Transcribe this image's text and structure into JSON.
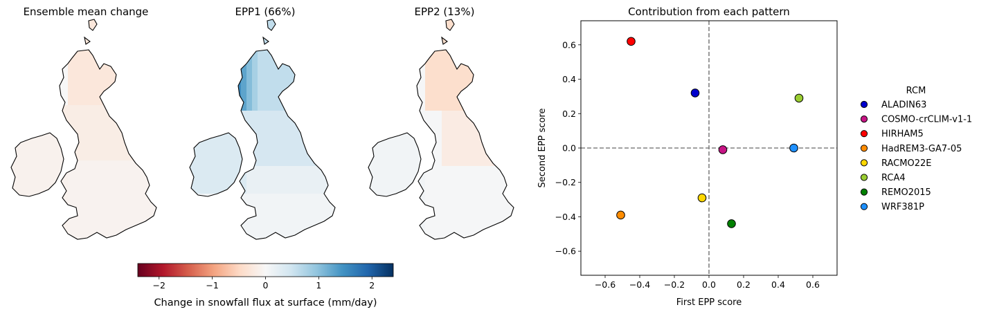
{
  "maps": [
    {
      "title": "Ensemble mean change",
      "pattern": "mean"
    },
    {
      "title": "EPP1 (66%)",
      "pattern": "epp1"
    },
    {
      "title": "EPP2 (13%)",
      "pattern": "epp2"
    }
  ],
  "colorbar": {
    "label": "Change in snowfall flux at surface (mm/day)",
    "range": [
      -2.4,
      2.4
    ],
    "ticks": [
      -2,
      -1,
      0,
      1,
      2
    ],
    "tick_labels": [
      "−2",
      "−1",
      "0",
      "1",
      "2"
    ],
    "colormap": "RdBu",
    "colors": [
      "#67001f",
      "#b2182b",
      "#d6604d",
      "#f4a582",
      "#fddbc7",
      "#f7f7f7",
      "#d1e5f0",
      "#92c5de",
      "#4393c3",
      "#2166ac",
      "#053061"
    ]
  },
  "chart_data": {
    "type": "scatter",
    "title": "Contribution from each pattern",
    "xlabel": "First EPP score",
    "ylabel": "Second EPP score",
    "xlim": [
      -0.74,
      0.74
    ],
    "ylim": [
      -0.74,
      0.74
    ],
    "xticks": [
      -0.6,
      -0.4,
      -0.2,
      0.0,
      0.2,
      0.4,
      0.6
    ],
    "xtick_labels": [
      "−0.6",
      "−0.4",
      "−0.2",
      "0.0",
      "0.2",
      "0.4",
      "0.6"
    ],
    "yticks": [
      -0.6,
      -0.4,
      -0.2,
      0.0,
      0.2,
      0.4,
      0.6
    ],
    "ytick_labels": [
      "−0.6",
      "−0.4",
      "−0.2",
      "0.0",
      "0.2",
      "0.4",
      "0.6"
    ],
    "reference_lines": {
      "x": 0,
      "y": 0,
      "style": "dashed",
      "color": "#808080"
    },
    "grid": false,
    "legend": {
      "title": "RCM",
      "placement": "right, outside"
    },
    "points": [
      {
        "name": "ALADIN63",
        "x": -0.08,
        "y": 0.32,
        "color": "#0000cd"
      },
      {
        "name": "COSMO-crCLIM-v1-1",
        "x": 0.08,
        "y": -0.01,
        "color": "#c71585"
      },
      {
        "name": "HIRHAM5",
        "x": -0.45,
        "y": 0.62,
        "color": "#ff0000"
      },
      {
        "name": "HadREM3-GA7-05",
        "x": -0.51,
        "y": -0.39,
        "color": "#ff8c00"
      },
      {
        "name": "RACMO22E",
        "x": -0.04,
        "y": -0.29,
        "color": "#ffd700"
      },
      {
        "name": "RCA4",
        "x": 0.52,
        "y": 0.29,
        "color": "#9acd32"
      },
      {
        "name": "REMO2015",
        "x": 0.13,
        "y": -0.44,
        "color": "#008000"
      },
      {
        "name": "WRF381P",
        "x": 0.49,
        "y": 0.0,
        "color": "#1e90ff"
      }
    ]
  }
}
